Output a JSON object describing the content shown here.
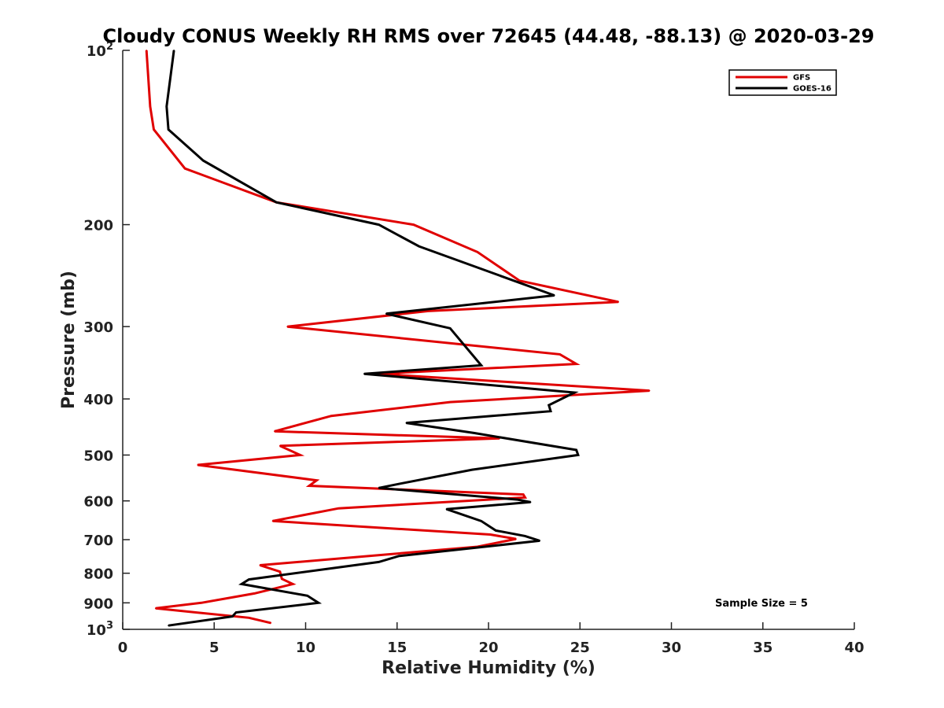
{
  "chart_data": {
    "type": "line",
    "orientation": "profile",
    "title": "Cloudy CONUS Weekly RH RMS over 72645 (44.48, -88.13) @ 2020-03-29",
    "xlabel": "Relative Humidity (%)",
    "ylabel": "Pressure (mb)",
    "xlim": [
      0,
      40
    ],
    "ylim": [
      100,
      1000
    ],
    "yscale": "log",
    "y_inverted": true,
    "grid": false,
    "legend_position": "top-right",
    "x_ticks": [
      0,
      5,
      10,
      15,
      20,
      25,
      30,
      35,
      40
    ],
    "y_ticks": [
      {
        "value": 100,
        "label": "10",
        "sup": "2"
      },
      {
        "value": 200,
        "label": "200"
      },
      {
        "value": 300,
        "label": "300"
      },
      {
        "value": 400,
        "label": "400"
      },
      {
        "value": 500,
        "label": "500"
      },
      {
        "value": 600,
        "label": "600"
      },
      {
        "value": 700,
        "label": "700"
      },
      {
        "value": 800,
        "label": "800"
      },
      {
        "value": 900,
        "label": "900"
      },
      {
        "value": 1000,
        "label": "10",
        "sup": "3"
      }
    ],
    "annotation": "Sample Size = 5",
    "series": [
      {
        "name": "GFS",
        "color": "#e00000",
        "points": [
          [
            1.3,
            100
          ],
          [
            1.5,
            125
          ],
          [
            1.7,
            137
          ],
          [
            3.4,
            160
          ],
          [
            8.4,
            183
          ],
          [
            15.9,
            200
          ],
          [
            19.4,
            223
          ],
          [
            21.7,
            250
          ],
          [
            27.1,
            272
          ],
          [
            16.7,
            282
          ],
          [
            9.0,
            300
          ],
          [
            23.9,
            335
          ],
          [
            24.8,
            348
          ],
          [
            13.9,
            362
          ],
          [
            28.8,
            387
          ],
          [
            17.9,
            405
          ],
          [
            11.4,
            428
          ],
          [
            8.3,
            455
          ],
          [
            20.6,
            468
          ],
          [
            8.6,
            482
          ],
          [
            9.7,
            500
          ],
          [
            4.1,
            520
          ],
          [
            10.6,
            553
          ],
          [
            10.2,
            565
          ],
          [
            21.9,
            585
          ],
          [
            22.0,
            592
          ],
          [
            11.8,
            618
          ],
          [
            8.2,
            650
          ],
          [
            12.5,
            663
          ],
          [
            20.1,
            686
          ],
          [
            21.5,
            698
          ],
          [
            19.4,
            720
          ],
          [
            7.5,
            775
          ],
          [
            8.6,
            795
          ],
          [
            8.7,
            818
          ],
          [
            9.3,
            835
          ],
          [
            7.2,
            867
          ],
          [
            4.3,
            900
          ],
          [
            1.8,
            920
          ],
          [
            6.9,
            955
          ],
          [
            8.1,
            975
          ]
        ]
      },
      {
        "name": "GOES-16",
        "color": "#000000",
        "points": [
          [
            2.8,
            100
          ],
          [
            2.4,
            125
          ],
          [
            2.5,
            137
          ],
          [
            4.4,
            155
          ],
          [
            8.4,
            183
          ],
          [
            14.0,
            200
          ],
          [
            16.2,
            218
          ],
          [
            23.6,
            265
          ],
          [
            14.4,
            285
          ],
          [
            17.9,
            302
          ],
          [
            19.6,
            350
          ],
          [
            13.2,
            362
          ],
          [
            24.7,
            390
          ],
          [
            23.3,
            410
          ],
          [
            23.4,
            420
          ],
          [
            15.5,
            440
          ],
          [
            19.2,
            458
          ],
          [
            24.8,
            490
          ],
          [
            24.9,
            500
          ],
          [
            19.1,
            530
          ],
          [
            15.2,
            560
          ],
          [
            14.0,
            570
          ],
          [
            21.6,
            597
          ],
          [
            22.3,
            603
          ],
          [
            17.7,
            620
          ],
          [
            19.6,
            650
          ],
          [
            20.4,
            675
          ],
          [
            22.0,
            690
          ],
          [
            22.8,
            703
          ],
          [
            15.1,
            747
          ],
          [
            14.0,
            765
          ],
          [
            6.9,
            820
          ],
          [
            6.5,
            835
          ],
          [
            10.1,
            875
          ],
          [
            10.7,
            900
          ],
          [
            6.2,
            935
          ],
          [
            6.0,
            950
          ],
          [
            2.5,
            985
          ]
        ]
      }
    ]
  }
}
